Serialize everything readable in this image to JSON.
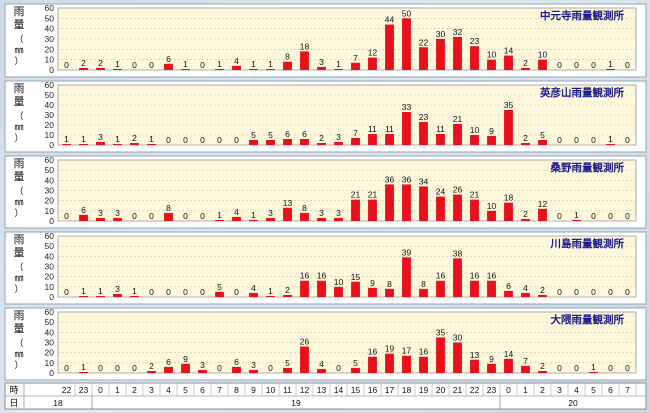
{
  "y_unit_label": [
    "雨",
    "量",
    "（",
    "㎜",
    "）"
  ],
  "chart_data": [
    {
      "type": "bar",
      "title": "中元寺雨量観測所",
      "ylim": [
        0,
        60
      ],
      "yticks": [
        0,
        10,
        20,
        30,
        40,
        50,
        60
      ],
      "categories": [
        "22",
        "23",
        "0",
        "1",
        "2",
        "3",
        "4",
        "5",
        "6",
        "7",
        "8",
        "9",
        "10",
        "11",
        "12",
        "13",
        "14",
        "15",
        "16",
        "17",
        "18",
        "19",
        "20",
        "21",
        "22",
        "23",
        "0",
        "1",
        "2",
        "3",
        "4",
        "5",
        "6",
        "7"
      ],
      "values": [
        0,
        2,
        2,
        1,
        0,
        0,
        6,
        1,
        0,
        1,
        4,
        1,
        1,
        8,
        18,
        3,
        1,
        7,
        12,
        44,
        50,
        22,
        30,
        32,
        23,
        10,
        14,
        2,
        10,
        0,
        0,
        0,
        1,
        0
      ],
      "grid": true
    },
    {
      "type": "bar",
      "title": "英彦山雨量観測所",
      "ylim": [
        0,
        60
      ],
      "yticks": [
        0,
        10,
        20,
        30,
        40,
        50,
        60
      ],
      "categories": [
        "22",
        "23",
        "0",
        "1",
        "2",
        "3",
        "4",
        "5",
        "6",
        "7",
        "8",
        "9",
        "10",
        "11",
        "12",
        "13",
        "14",
        "15",
        "16",
        "17",
        "18",
        "19",
        "20",
        "21",
        "22",
        "23",
        "0",
        "1",
        "2",
        "3",
        "4",
        "5",
        "6",
        "7"
      ],
      "values": [
        1,
        1,
        3,
        1,
        2,
        1,
        0,
        0,
        0,
        0,
        0,
        5,
        5,
        6,
        6,
        2,
        3,
        7,
        11,
        11,
        33,
        23,
        11,
        21,
        10,
        9,
        35,
        2,
        5,
        0,
        0,
        0,
        1,
        0
      ],
      "grid": true
    },
    {
      "type": "bar",
      "title": "桑野雨量観測所",
      "ylim": [
        0,
        60
      ],
      "yticks": [
        0,
        10,
        20,
        30,
        40,
        50,
        60
      ],
      "categories": [
        "22",
        "23",
        "0",
        "1",
        "2",
        "3",
        "4",
        "5",
        "6",
        "7",
        "8",
        "9",
        "10",
        "11",
        "12",
        "13",
        "14",
        "15",
        "16",
        "17",
        "18",
        "19",
        "20",
        "21",
        "22",
        "23",
        "0",
        "1",
        "2",
        "3",
        "4",
        "5",
        "6",
        "7"
      ],
      "values": [
        0,
        6,
        3,
        3,
        0,
        0,
        8,
        0,
        0,
        1,
        4,
        1,
        3,
        13,
        8,
        3,
        3,
        21,
        21,
        36,
        36,
        34,
        24,
        26,
        21,
        10,
        18,
        2,
        12,
        0,
        1,
        0,
        0,
        0
      ],
      "grid": true
    },
    {
      "type": "bar",
      "title": "川島雨量観測所",
      "ylim": [
        0,
        60
      ],
      "yticks": [
        0,
        10,
        20,
        30,
        40,
        50,
        60
      ],
      "categories": [
        "22",
        "23",
        "0",
        "1",
        "2",
        "3",
        "4",
        "5",
        "6",
        "7",
        "8",
        "9",
        "10",
        "11",
        "12",
        "13",
        "14",
        "15",
        "16",
        "17",
        "18",
        "19",
        "20",
        "21",
        "22",
        "23",
        "0",
        "1",
        "2",
        "3",
        "4",
        "5",
        "6",
        "7"
      ],
      "values": [
        0,
        1,
        1,
        3,
        1,
        0,
        0,
        0,
        0,
        5,
        0,
        4,
        1,
        2,
        16,
        16,
        10,
        15,
        9,
        8,
        39,
        8,
        16,
        38,
        16,
        16,
        6,
        4,
        2,
        0,
        0,
        0,
        0,
        0
      ],
      "grid": true
    },
    {
      "type": "bar",
      "title": "大隈雨量観測所",
      "ylim": [
        0,
        60
      ],
      "yticks": [
        0,
        10,
        20,
        30,
        40,
        50,
        60
      ],
      "categories": [
        "22",
        "23",
        "0",
        "1",
        "2",
        "3",
        "4",
        "5",
        "6",
        "7",
        "8",
        "9",
        "10",
        "11",
        "12",
        "13",
        "14",
        "15",
        "16",
        "17",
        "18",
        "19",
        "20",
        "21",
        "22",
        "23",
        "0",
        "1",
        "2",
        "3",
        "4",
        "5",
        "6",
        "7"
      ],
      "values": [
        0,
        1,
        0,
        0,
        0,
        2,
        6,
        9,
        3,
        0,
        6,
        3,
        0,
        5,
        26,
        4,
        0,
        5,
        16,
        19,
        17,
        16,
        35,
        30,
        13,
        9,
        14,
        7,
        2,
        0,
        0,
        1,
        0,
        0
      ],
      "grid": true
    }
  ],
  "axis": {
    "hour_label": "時",
    "day_label": "日",
    "hours": [
      "22",
      "23",
      "0",
      "1",
      "2",
      "3",
      "4",
      "5",
      "6",
      "7",
      "8",
      "9",
      "10",
      "11",
      "12",
      "13",
      "14",
      "15",
      "16",
      "17",
      "18",
      "19",
      "20",
      "21",
      "22",
      "23",
      "0",
      "1",
      "2",
      "3",
      "4",
      "5",
      "6",
      "7"
    ],
    "days": [
      {
        "label": "18",
        "start": 0,
        "count": 2
      },
      {
        "label": "19",
        "start": 2,
        "count": 24
      },
      {
        "label": "20",
        "start": 26,
        "count": 8
      }
    ]
  },
  "colors": {
    "bar": "#e8101c",
    "title": "#1a1a8c",
    "panel": "#ffffff",
    "plot": "#fdf8dc",
    "grid": "#c9c3a0"
  }
}
